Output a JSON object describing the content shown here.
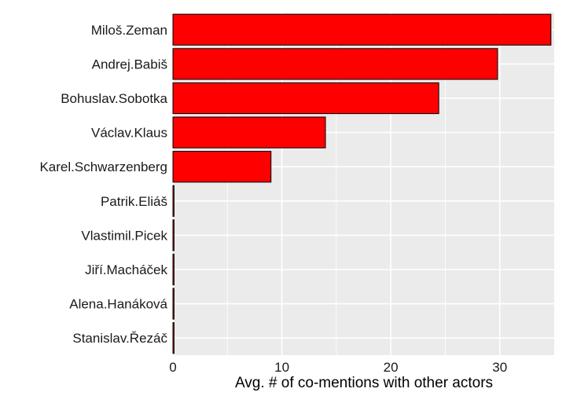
{
  "chart_data": {
    "type": "bar",
    "orientation": "horizontal",
    "title": "",
    "xlabel": "Avg. # of co-mentions with other actors",
    "ylabel": "",
    "categories": [
      "Miloš.Zeman",
      "Andrej.Babiš",
      "Bohuslav.Sobotka",
      "Václav.Klaus",
      "Karel.Schwarzenberg",
      "Patrik.Eliáš",
      "Vlastimil.Picek",
      "Jiří.Macháček",
      "Alena.Hanáková",
      "Stanislav.Řezáč"
    ],
    "values": [
      34.7,
      29.8,
      24.4,
      14.0,
      9.0,
      0.1,
      0.1,
      0.1,
      0.1,
      0.1
    ],
    "xlim": [
      0,
      35
    ],
    "xticks": [
      0,
      10,
      20,
      30
    ],
    "grid": true,
    "bar_color": "#ff0000",
    "bar_outline": "#000000",
    "panel_background": "#ebebeb",
    "grid_color": "#ffffff"
  }
}
